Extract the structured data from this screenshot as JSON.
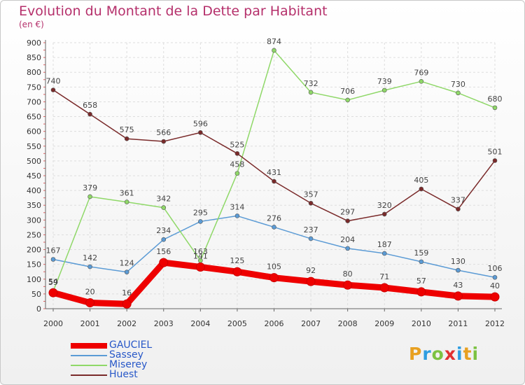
{
  "header": {
    "title": "Evolution du Montant de la Dette par Habitant",
    "subtitle": "(en €)"
  },
  "logo": {
    "text": "Proxiti",
    "colors": [
      "#e8a020",
      "#2e9de0",
      "#7cc242",
      "#e03030",
      "#2e9de0",
      "#e8a020",
      "#7cc242"
    ]
  },
  "chart_data": {
    "type": "line",
    "x": [
      "2000",
      "2001",
      "2002",
      "2003",
      "2004",
      "2005",
      "2006",
      "2007",
      "2008",
      "2009",
      "2010",
      "2011",
      "2012"
    ],
    "ylim": [
      0,
      900
    ],
    "yticks": [
      0,
      50,
      100,
      150,
      200,
      250,
      300,
      350,
      400,
      450,
      500,
      550,
      600,
      650,
      700,
      750,
      800,
      850,
      900
    ],
    "grid": true,
    "legend_position": "bottom-left",
    "series": [
      {
        "name": "GAUCIEL",
        "color": "#ee0000",
        "values": [
          54,
          20,
          16,
          156,
          141,
          125,
          105,
          92,
          80,
          71,
          57,
          43,
          40
        ]
      },
      {
        "name": "Sassey",
        "color": "#5b9bd5",
        "values": [
          167,
          142,
          124,
          234,
          295,
          314,
          276,
          237,
          204,
          187,
          159,
          130,
          106
        ]
      },
      {
        "name": "Miserey",
        "color": "#8fd868",
        "values": [
          59,
          379,
          361,
          342,
          163,
          458,
          874,
          732,
          706,
          739,
          769,
          730,
          680
        ]
      },
      {
        "name": "Huest",
        "color": "#7a2a2a",
        "values": [
          740,
          658,
          575,
          566,
          596,
          525,
          431,
          357,
          297,
          320,
          405,
          337,
          501
        ]
      }
    ]
  }
}
